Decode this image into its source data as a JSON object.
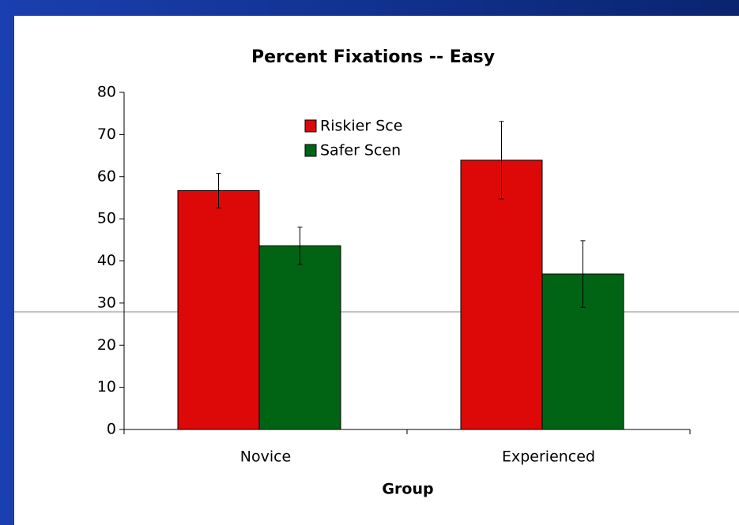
{
  "chart_data": {
    "type": "bar",
    "title": "Percent Fixations -- Easy",
    "x_label": "Group",
    "categories": [
      "Novice",
      "Experienced"
    ],
    "series": [
      {
        "name": "Riskier Sce",
        "color": "#dd0808",
        "values": [
          56.7,
          63.9
        ],
        "errors": [
          4.1,
          9.2
        ]
      },
      {
        "name": "Safer Scen",
        "color": "#006414",
        "values": [
          43.6,
          36.9
        ],
        "errors": [
          4.4,
          7.9
        ]
      }
    ],
    "ylim": [
      0,
      80
    ],
    "yticks": [
      0,
      10,
      20,
      30,
      40,
      50,
      60,
      70,
      80
    ]
  }
}
